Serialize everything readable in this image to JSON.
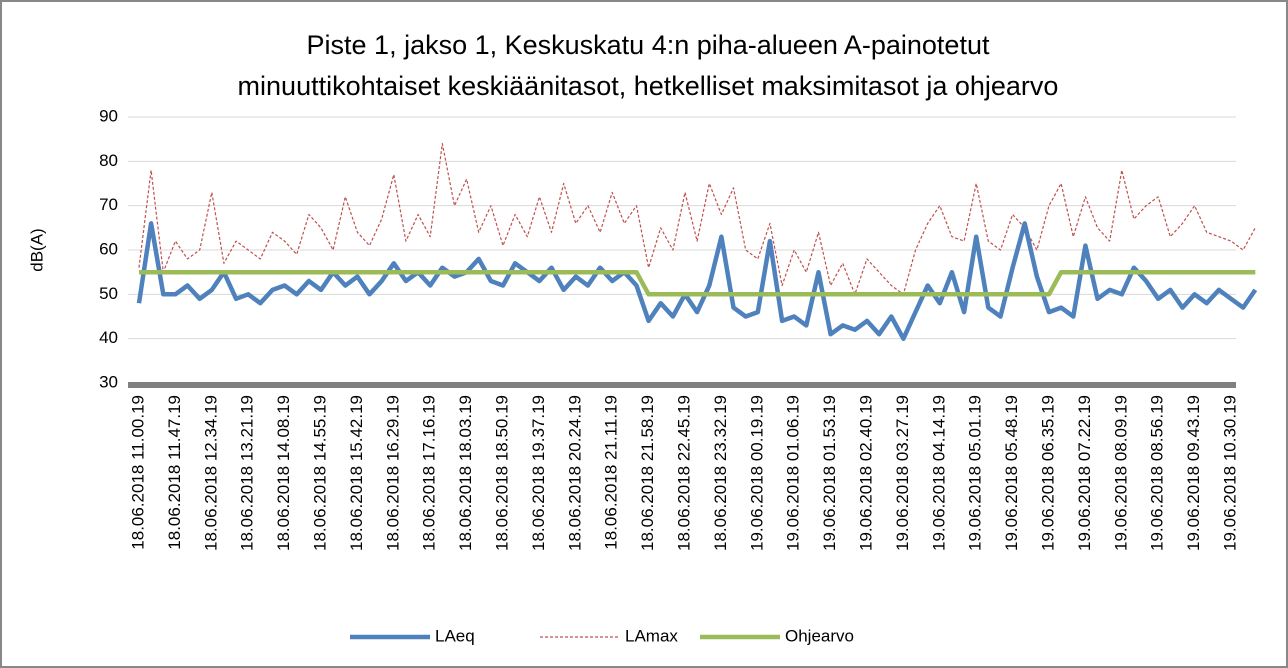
{
  "chart_data": {
    "type": "line",
    "title": [
      "Piste 1, jakso 1, Keskuskatu 4:n piha-alueen A-painotetut",
      "minuuttikohtaiset keskiäänitasot, hetkelliset maksimitasot ja ohjearvo"
    ],
    "ylabel": "dB(A)",
    "categories": [
      "18.06.2018 11.00.19",
      null,
      null,
      "18.06.2018 11.47.19",
      null,
      null,
      "18.06.2018 12.34.19",
      null,
      null,
      "18.06.2018 13.21.19",
      null,
      null,
      "18.06.2018 14.08.19",
      null,
      null,
      "18.06.2018 14.55.19",
      null,
      null,
      "18.06.2018 15.42.19",
      null,
      null,
      "18.06.2018 16.29.19",
      null,
      null,
      "18.06.2018 17.16.19",
      null,
      null,
      "18.06.2018 18.03.19",
      null,
      null,
      "18.06.2018 18.50.19",
      null,
      null,
      "18.06.2018 19.37.19",
      null,
      null,
      "18.06.2018 20.24.19",
      null,
      null,
      "18.06.2018 21.11.19",
      null,
      null,
      "18.06.2018 21.58.19",
      null,
      null,
      "18.06.2018 22.45.19",
      null,
      null,
      "18.06.2018 23.32.19",
      null,
      null,
      "19.06.2018 00.19.19",
      null,
      null,
      "19.06.2018 01.06.19",
      null,
      null,
      "19.06.2018 01.53.19",
      null,
      null,
      "19.06.2018 02.40.19",
      null,
      null,
      "19.06.2018 03.27.19",
      null,
      null,
      "19.06.2018 04.14.19",
      null,
      null,
      "19.06.2018 05.01.19",
      null,
      null,
      "19.06.2018 05.48.19",
      null,
      null,
      "19.06.2018 06.35.19",
      null,
      null,
      "19.06.2018 07.22.19",
      null,
      null,
      "19.06.2018 08.09.19",
      null,
      null,
      "19.06.2018 08.56.19",
      null,
      null,
      "19.06.2018 09.43.19",
      null,
      null,
      "19.06.2018 10.30.19",
      null,
      null
    ],
    "series": [
      {
        "name": "LAeq",
        "color": "#4f81bd",
        "values": [
          48,
          66,
          50,
          50,
          52,
          49,
          51,
          55,
          49,
          50,
          48,
          51,
          52,
          50,
          53,
          51,
          55,
          52,
          54,
          50,
          53,
          57,
          53,
          55,
          52,
          56,
          54,
          55,
          58,
          53,
          52,
          57,
          55,
          53,
          56,
          51,
          54,
          52,
          56,
          53,
          55,
          52,
          44,
          48,
          45,
          50,
          46,
          52,
          63,
          47,
          45,
          46,
          62,
          44,
          45,
          43,
          55,
          41,
          43,
          42,
          44,
          41,
          45,
          40,
          46,
          52,
          48,
          55,
          46,
          63,
          47,
          45,
          56,
          66,
          54,
          46,
          47,
          45,
          61,
          49,
          51,
          50,
          56,
          53,
          49,
          51,
          47,
          50,
          48,
          51,
          49,
          47,
          51
        ]
      },
      {
        "name": "LAmax",
        "color": "#c0504d",
        "dash": true,
        "values": [
          56,
          78,
          55,
          62,
          58,
          60,
          73,
          57,
          62,
          60,
          58,
          64,
          62,
          59,
          68,
          65,
          60,
          72,
          64,
          61,
          67,
          77,
          62,
          68,
          63,
          84,
          70,
          76,
          64,
          70,
          61,
          68,
          63,
          72,
          64,
          75,
          66,
          70,
          64,
          73,
          66,
          70,
          56,
          65,
          60,
          73,
          62,
          75,
          68,
          74,
          60,
          58,
          66,
          52,
          60,
          55,
          64,
          52,
          57,
          50,
          58,
          55,
          52,
          50,
          60,
          66,
          70,
          63,
          62,
          75,
          62,
          60,
          68,
          65,
          60,
          70,
          75,
          63,
          72,
          65,
          62,
          78,
          67,
          70,
          72,
          63,
          66,
          70,
          64,
          63,
          62,
          60,
          65
        ]
      },
      {
        "name": "Ohjearvo",
        "color": "#9bbb59",
        "values": [
          55,
          55,
          55,
          55,
          55,
          55,
          55,
          55,
          55,
          55,
          55,
          55,
          55,
          55,
          55,
          55,
          55,
          55,
          55,
          55,
          55,
          55,
          55,
          55,
          55,
          55,
          55,
          55,
          55,
          55,
          55,
          55,
          55,
          55,
          55,
          55,
          55,
          55,
          55,
          55,
          55,
          55,
          50,
          50,
          50,
          50,
          50,
          50,
          50,
          50,
          50,
          50,
          50,
          50,
          50,
          50,
          50,
          50,
          50,
          50,
          50,
          50,
          50,
          50,
          50,
          50,
          50,
          50,
          50,
          50,
          50,
          50,
          50,
          50,
          50,
          50,
          55,
          55,
          55,
          55,
          55,
          55,
          55,
          55,
          55,
          55,
          55,
          55,
          55,
          55,
          55,
          55,
          55
        ]
      }
    ],
    "ylim": [
      30,
      90
    ],
    "yticks": [
      30,
      40,
      50,
      60,
      70,
      80,
      90
    ],
    "grid": true,
    "legend": "bottom"
  }
}
